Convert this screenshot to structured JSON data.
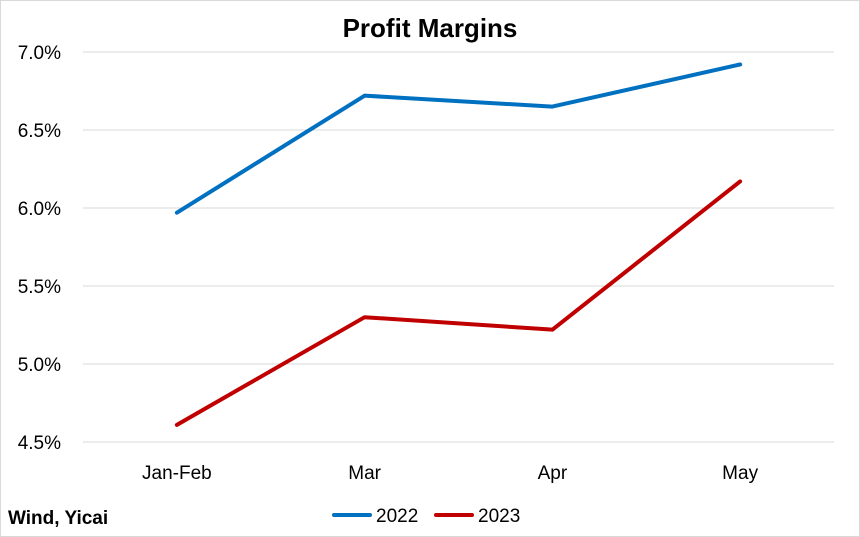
{
  "chart_data": {
    "type": "line",
    "title": "Profit Margins",
    "xlabel": "",
    "ylabel": "",
    "categories": [
      "Jan-Feb",
      "Mar",
      "Apr",
      "May"
    ],
    "series": [
      {
        "name": "2022",
        "values": [
          5.97,
          6.72,
          6.65,
          6.92
        ],
        "color": "#0070C0"
      },
      {
        "name": "2023",
        "values": [
          4.61,
          5.3,
          5.22,
          6.17
        ],
        "color": "#C00000"
      }
    ],
    "ylim": [
      4.5,
      7.0
    ],
    "yticks": [
      4.5,
      5.0,
      5.5,
      6.0,
      6.5,
      7.0
    ],
    "ytick_labels": [
      "4.5%",
      "5.0%",
      "5.5%",
      "6.0%",
      "6.5%",
      "7.0%"
    ],
    "grid": true,
    "legend_position": "bottom",
    "source": "Wind, Yicai"
  }
}
